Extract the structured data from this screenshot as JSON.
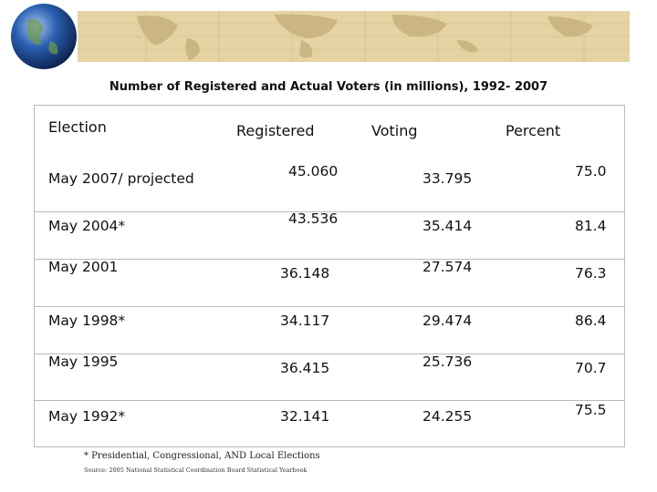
{
  "title": "Number of Registered and Actual Voters (in millions), 1992- 2007",
  "table": {
    "columns": [
      "Election",
      "Registered",
      "Voting",
      "Percent"
    ],
    "rows": [
      [
        "May 2007/ projected",
        "45.060",
        "33.795",
        "75.0"
      ],
      [
        "May 2004*",
        "43.536",
        "35.414",
        "81.4"
      ],
      [
        "May 2001",
        "36.148",
        "27.574",
        "76.3"
      ],
      [
        "May 1998*",
        "34.117",
        "29.474",
        "86.4"
      ],
      [
        "May 1995",
        "36.415",
        "25.736",
        "70.7"
      ],
      [
        "May 1992*",
        "32.141",
        "24.255",
        "75.5"
      ]
    ]
  },
  "footnote": "* Presidential, Congressional, AND Local Elections",
  "source": "Source: 2005 National Statistical Coordination Board Statistical Yearbook"
}
